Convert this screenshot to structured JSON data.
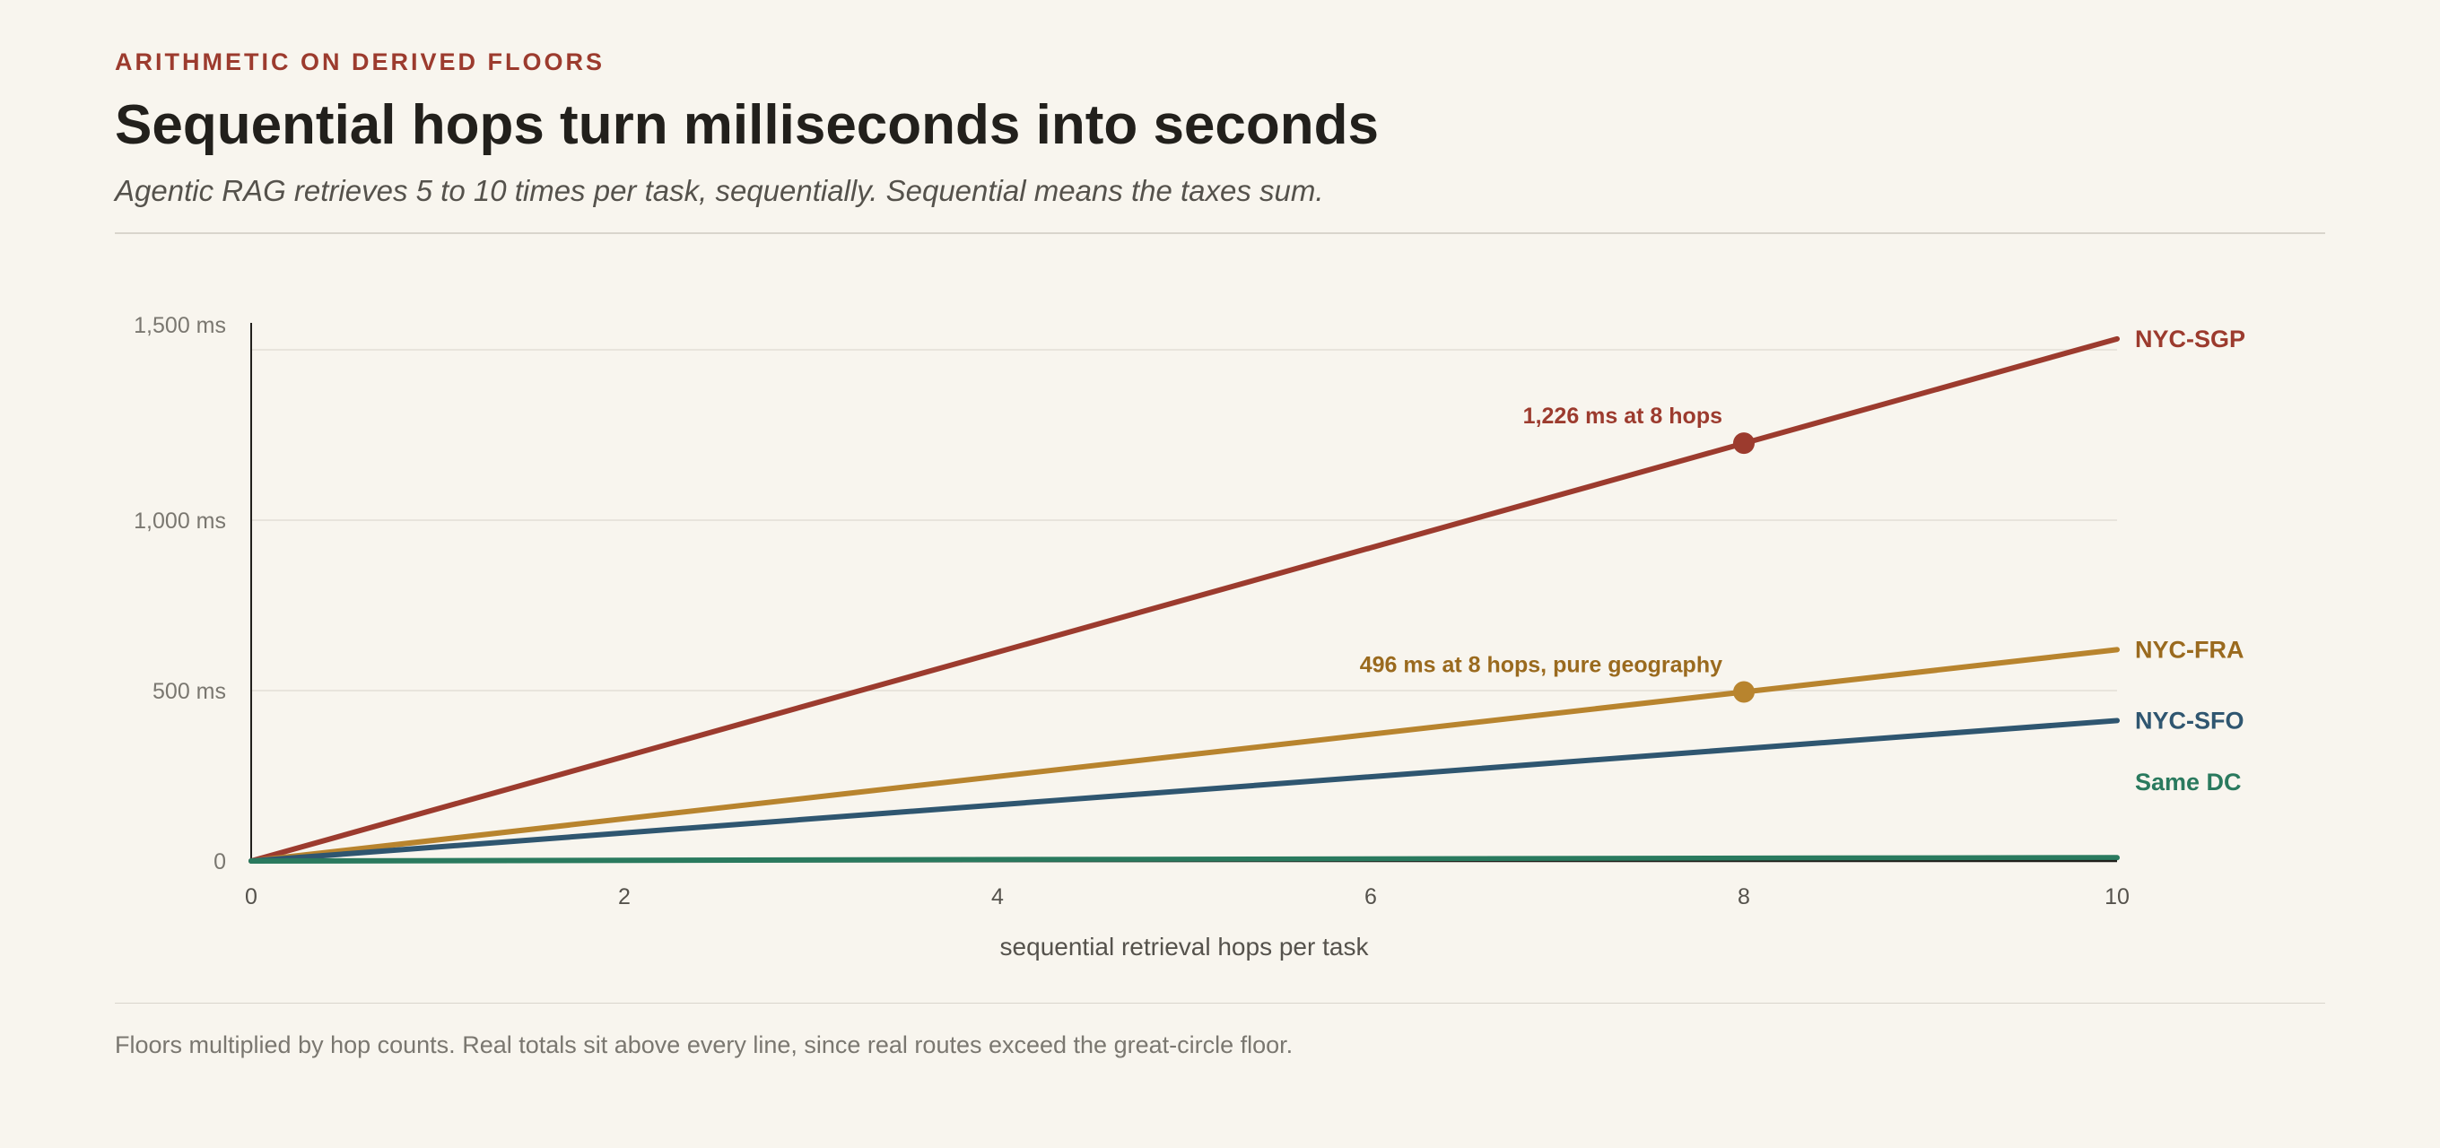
{
  "header": {
    "kicker": "ARITHMETIC ON DERIVED FLOORS",
    "title": "Sequential hops turn milliseconds into seconds",
    "subtitle": "Agentic RAG retrieves 5 to 10 times per task, sequentially. Sequential means the taxes sum."
  },
  "footnote": "Floors multiplied by hop counts. Real totals sit above every line, since real routes exceed the great-circle floor.",
  "chart_data": {
    "type": "line",
    "title": "Sequential hops turn milliseconds into seconds",
    "xlabel": "sequential retrieval hops per task",
    "ylabel": "",
    "xlim": [
      0,
      10
    ],
    "ylim": [
      0,
      1500
    ],
    "x_ticks": [
      0,
      2,
      4,
      6,
      8,
      10
    ],
    "x_tick_labels": [
      "0",
      "2",
      "4",
      "6",
      "8",
      "10"
    ],
    "y_ticks": [
      0,
      500,
      1000,
      1500
    ],
    "y_tick_labels": [
      "0",
      "500 ms",
      "1,000 ms",
      "1,500 ms"
    ],
    "grid": "horizontal",
    "legend": "direct labels at right end of lines",
    "series": [
      {
        "name": "NYC-SGP",
        "color": "#9c3b2e",
        "x": [
          0,
          10
        ],
        "y": [
          0,
          1532
        ]
      },
      {
        "name": "NYC-FRA",
        "color": "#b8842e",
        "x": [
          0,
          10
        ],
        "y": [
          0,
          620
        ]
      },
      {
        "name": "NYC-SFO",
        "color": "#2f5670",
        "x": [
          0,
          10
        ],
        "y": [
          0,
          412
        ]
      },
      {
        "name": "Same DC",
        "color": "#2a7a5e",
        "x": [
          0,
          10
        ],
        "y": [
          0,
          10
        ]
      }
    ],
    "annotations": [
      {
        "series": "NYC-SGP",
        "x": 8,
        "y": 1226,
        "text": "1,226 ms at 8 hops",
        "color": "#9c3b2e"
      },
      {
        "series": "NYC-FRA",
        "x": 8,
        "y": 496,
        "text": "496 ms at 8 hops, pure geography",
        "color": "#9a6a1e"
      }
    ],
    "label_colors": {
      "NYC-SGP": "#9c3b2e",
      "NYC-FRA": "#9a6a1e",
      "NYC-SFO": "#2f5670",
      "Same DC": "#2a7a5e"
    }
  }
}
